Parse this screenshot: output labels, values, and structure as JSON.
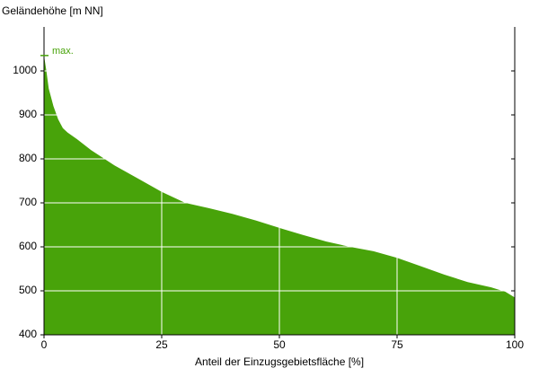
{
  "chart_data": {
    "type": "area",
    "ylabel": "Geländehöhe [m NN]",
    "xlabel": "Anteil der Einzugsgebietsfläche [%]",
    "x": [
      0,
      0.5,
      1,
      2,
      3,
      4,
      5,
      7,
      10,
      15,
      20,
      25,
      30,
      35,
      40,
      45,
      50,
      55,
      60,
      65,
      70,
      75,
      80,
      85,
      90,
      95,
      98,
      100
    ],
    "values": [
      1035,
      1000,
      960,
      920,
      890,
      870,
      860,
      845,
      820,
      785,
      755,
      725,
      700,
      688,
      675,
      660,
      643,
      627,
      612,
      600,
      590,
      575,
      556,
      537,
      520,
      508,
      498,
      485
    ],
    "color": "#48a30a",
    "annotation": {
      "text": "max.",
      "value": 1035
    },
    "xlim": [
      0,
      100
    ],
    "xticks": [
      0,
      25,
      50,
      75,
      100
    ],
    "ylim": [
      400,
      1100
    ],
    "yticks": [
      400,
      500,
      600,
      700,
      800,
      900,
      1000
    ],
    "grid": true
  }
}
